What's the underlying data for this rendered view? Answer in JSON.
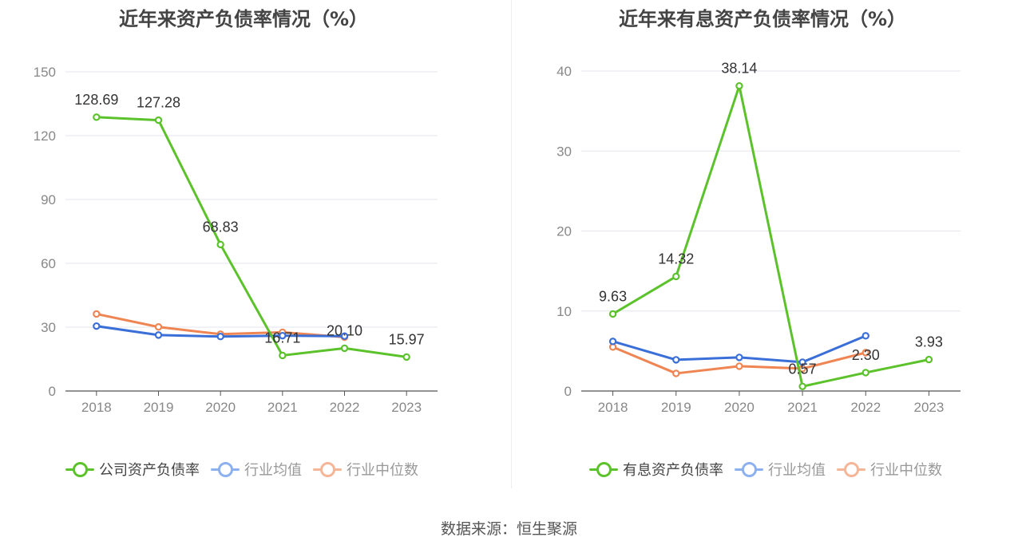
{
  "source_note": "数据来源：恒生聚源",
  "chart_data": [
    {
      "type": "line",
      "title": "近年来资产负债率情况（%）",
      "categories": [
        "2018",
        "2019",
        "2020",
        "2021",
        "2022",
        "2023"
      ],
      "ylim": [
        0,
        150
      ],
      "yticks": [
        0,
        30,
        60,
        90,
        120,
        150
      ],
      "grid": true,
      "legend_position": "bottom",
      "series": [
        {
          "name": "公司资产负债率",
          "color": "#5cc22b",
          "values": [
            128.69,
            127.28,
            68.83,
            16.71,
            20.1,
            15.97
          ],
          "labels": [
            "128.69",
            "127.28",
            "68.83",
            "16.71",
            "20.10",
            "15.97"
          ]
        },
        {
          "name": "行业均值",
          "color": "#3a6fd8",
          "values": [
            30.5,
            26.3,
            25.6,
            26.0,
            25.8,
            null
          ]
        },
        {
          "name": "行业中位数",
          "color": "#ef8553",
          "values": [
            36.2,
            30.1,
            26.7,
            27.6,
            25.3,
            null
          ]
        }
      ]
    },
    {
      "type": "line",
      "title": "近年来有息资产负债率情况（%）",
      "categories": [
        "2018",
        "2019",
        "2020",
        "2021",
        "2022",
        "2023"
      ],
      "ylim": [
        0,
        40
      ],
      "yticks": [
        0,
        10,
        20,
        30,
        40
      ],
      "grid": true,
      "legend_position": "bottom",
      "series": [
        {
          "name": "有息资产负债率",
          "color": "#5cc22b",
          "values": [
            9.63,
            14.32,
            38.14,
            0.57,
            2.3,
            3.93
          ],
          "labels": [
            "9.63",
            "14.32",
            "38.14",
            "0.57",
            "2.30",
            "3.93"
          ]
        },
        {
          "name": "行业均值",
          "color": "#3a6fd8",
          "values": [
            6.2,
            3.9,
            4.2,
            3.6,
            6.9,
            null
          ]
        },
        {
          "name": "行业中位数",
          "color": "#ef8553",
          "values": [
            5.5,
            2.2,
            3.1,
            2.8,
            4.8,
            null
          ]
        }
      ]
    }
  ]
}
